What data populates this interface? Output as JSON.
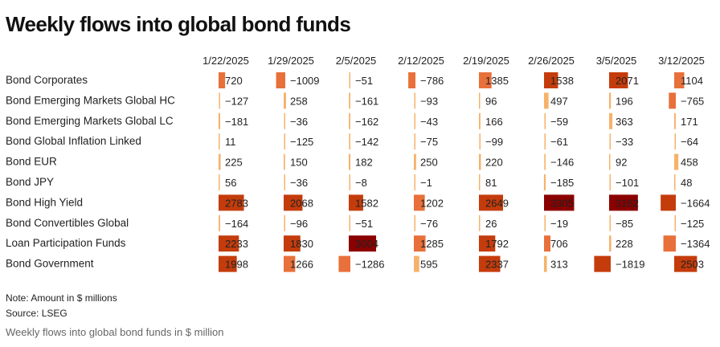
{
  "header": {
    "title": "Weekly flows into global bond funds"
  },
  "footer": {
    "note": "Note: Amount in $ millions",
    "source": "Source: LSEG",
    "caption": "Weekly flows into global bond funds in $ million"
  },
  "colors": {
    "c1": "#f6b26b",
    "c2": "#e8703a",
    "c3": "#c43c0c",
    "c4": "#8b0000"
  },
  "chart_data": {
    "type": "table",
    "columns": [
      "1/22/2025",
      "1/29/2025",
      "2/5/2025",
      "2/12/2025",
      "2/19/2025",
      "2/26/2025",
      "3/5/2025",
      "3/12/2025"
    ],
    "rows": [
      {
        "label": "Bond Corporates",
        "values": [
          720,
          -1009,
          -51,
          -786,
          1385,
          1538,
          2071,
          1104
        ]
      },
      {
        "label": "Bond Emerging Markets Global HC",
        "values": [
          -127,
          258,
          -161,
          -93,
          96,
          497,
          196,
          -765
        ]
      },
      {
        "label": "Bond Emerging Markets Global LC",
        "values": [
          -181,
          -36,
          -162,
          -43,
          166,
          -59,
          363,
          171
        ]
      },
      {
        "label": "Bond Global Inflation Linked",
        "values": [
          11,
          -125,
          -142,
          -75,
          -99,
          -61,
          -33,
          -64
        ]
      },
      {
        "label": "Bond EUR",
        "values": [
          225,
          150,
          182,
          250,
          220,
          -146,
          92,
          458
        ]
      },
      {
        "label": "Bond JPY",
        "values": [
          56,
          -36,
          -8,
          -1,
          81,
          -185,
          -101,
          48
        ]
      },
      {
        "label": "Bond High Yield",
        "values": [
          2783,
          2068,
          1582,
          1202,
          2649,
          3305,
          3162,
          -1664
        ]
      },
      {
        "label": "Bond Convertibles Global",
        "values": [
          -164,
          -96,
          -51,
          -76,
          26,
          -19,
          -85,
          -125
        ]
      },
      {
        "label": "Loan Participation Funds",
        "values": [
          2233,
          1830,
          3004,
          1285,
          1792,
          706,
          228,
          -1364
        ]
      },
      {
        "label": "Bond Government",
        "values": [
          1998,
          1266,
          -1286,
          595,
          2337,
          313,
          -1819,
          2503
        ]
      }
    ]
  }
}
